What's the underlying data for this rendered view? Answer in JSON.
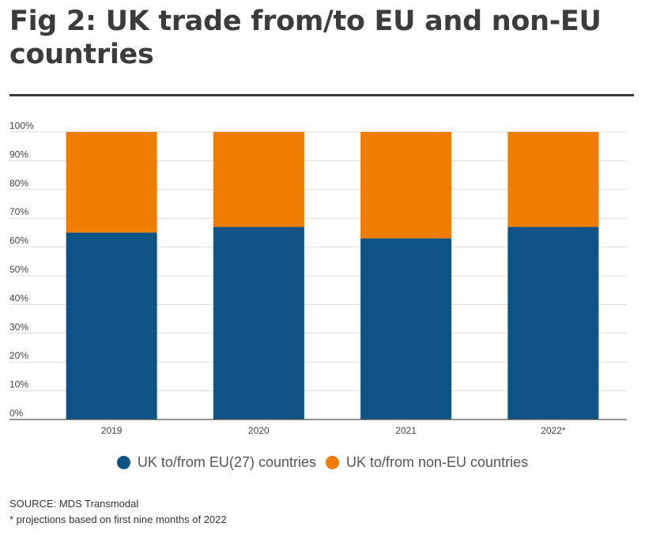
{
  "title": "Fig 2: UK trade from/to EU and non-EU countries",
  "chart_data": {
    "type": "bar",
    "stacked": true,
    "categories": [
      "2019",
      "2020",
      "2021",
      "2022*"
    ],
    "series": [
      {
        "name": "UK to/from EU(27) countries",
        "values": [
          65,
          67,
          63,
          67
        ],
        "color": "#0f5384"
      },
      {
        "name": "UK to/from non-EU countries",
        "values": [
          35,
          33,
          37,
          33
        ],
        "color": "#f07c00"
      }
    ],
    "y_ticks": [
      "0%",
      "10%",
      "20%",
      "30%",
      "40%",
      "50%",
      "60%",
      "70%",
      "80%",
      "90%",
      "100%"
    ],
    "ylim": [
      0,
      100
    ],
    "grid": true,
    "legend_position": "bottom"
  },
  "footer": {
    "source": "SOURCE: MDS Transmodal",
    "note": "* projections based on first nine months of 2022"
  }
}
